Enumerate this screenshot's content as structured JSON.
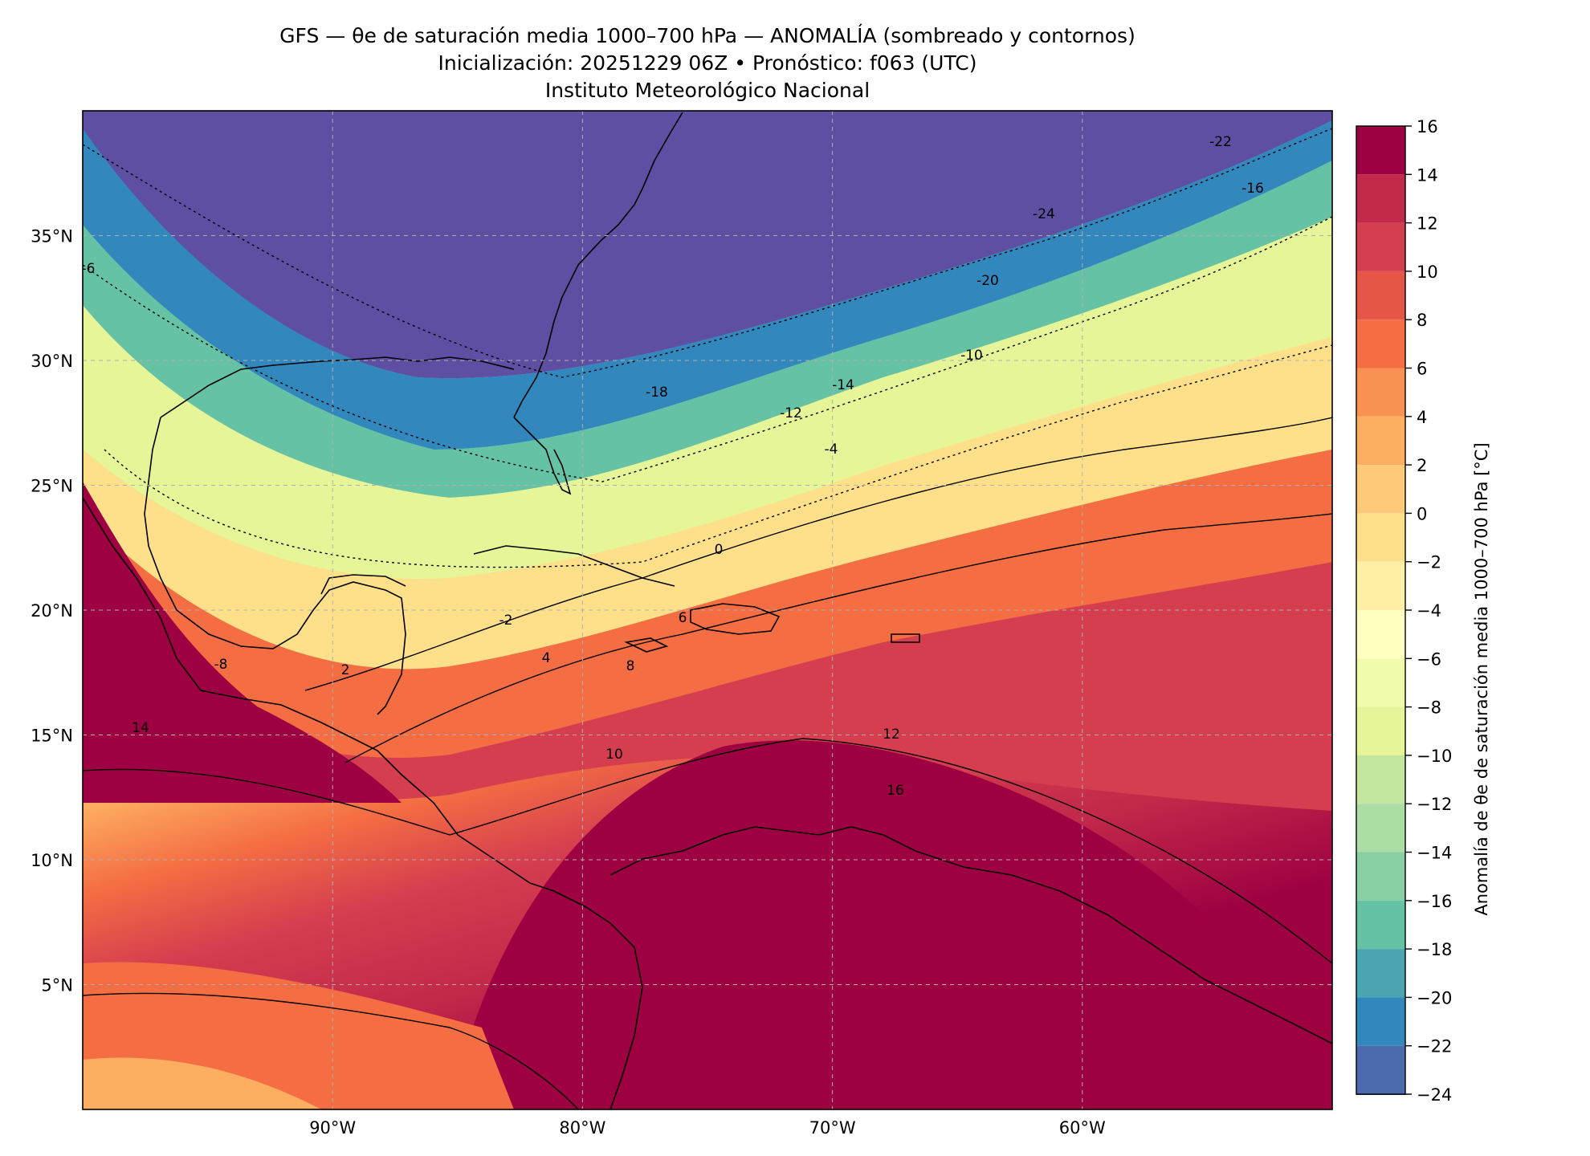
{
  "title": {
    "line1": "GFS — θe de saturación media 1000–700 hPa — ANOMALÍA (sombreado y contornos)",
    "line2": "Inicialización: 20251229 06Z   •   Pronóstico: f063 (UTC)",
    "line3": "Instituto Meteorológico Nacional"
  },
  "map": {
    "lon_range": [
      -100,
      -50
    ],
    "lat_range": [
      0,
      40
    ],
    "lon_ticks": [
      {
        "value": -90,
        "label": "90°W"
      },
      {
        "value": -80,
        "label": "80°W"
      },
      {
        "value": -70,
        "label": "70°W"
      },
      {
        "value": -60,
        "label": "60°W"
      }
    ],
    "lat_ticks": [
      {
        "value": 35,
        "label": "35°N"
      },
      {
        "value": 30,
        "label": "30°N"
      },
      {
        "value": 25,
        "label": "25°N"
      },
      {
        "value": 20,
        "label": "20°N"
      },
      {
        "value": 15,
        "label": "15°N"
      },
      {
        "value": 10,
        "label": "10°N"
      },
      {
        "value": 5,
        "label": "5°N"
      }
    ],
    "gridlines": "dashed",
    "contour_labels": [
      "-24",
      "-22",
      "-20",
      "-18",
      "-16",
      "-14",
      "-12",
      "-10",
      "-8",
      "-6",
      "-4",
      "-2",
      "0",
      "2",
      "4",
      "6",
      "8",
      "10",
      "12",
      "14",
      "16"
    ]
  },
  "colorbar": {
    "label": "Anomalía de θe de saturación media 1000–700 hPa [°C]",
    "range": [
      -24,
      16
    ],
    "ticks": [
      16,
      14,
      12,
      10,
      8,
      6,
      4,
      2,
      0,
      -2,
      -4,
      -6,
      -8,
      -10,
      -12,
      -14,
      -16,
      -18,
      -20,
      -22,
      -24
    ],
    "tick_labels": [
      "16",
      "14",
      "12",
      "10",
      "8",
      "6",
      "4",
      "2",
      "0",
      "−2",
      "−4",
      "−6",
      "−8",
      "−10",
      "−12",
      "−14",
      "−16",
      "−18",
      "−20",
      "−22",
      "−24"
    ],
    "colors": [
      "#9e0142",
      "#c2294a",
      "#d53e4f",
      "#e55649",
      "#f46d43",
      "#f99153",
      "#fdae61",
      "#fec978",
      "#fee08b",
      "#fff0a6",
      "#ffffbf",
      "#f2faac",
      "#e6f598",
      "#c3e79f",
      "#abdda4",
      "#88cfa4",
      "#66c2a5",
      "#4ba4b1",
      "#3288bd",
      "#4d6aae",
      "#5e4fa2"
    ]
  }
}
